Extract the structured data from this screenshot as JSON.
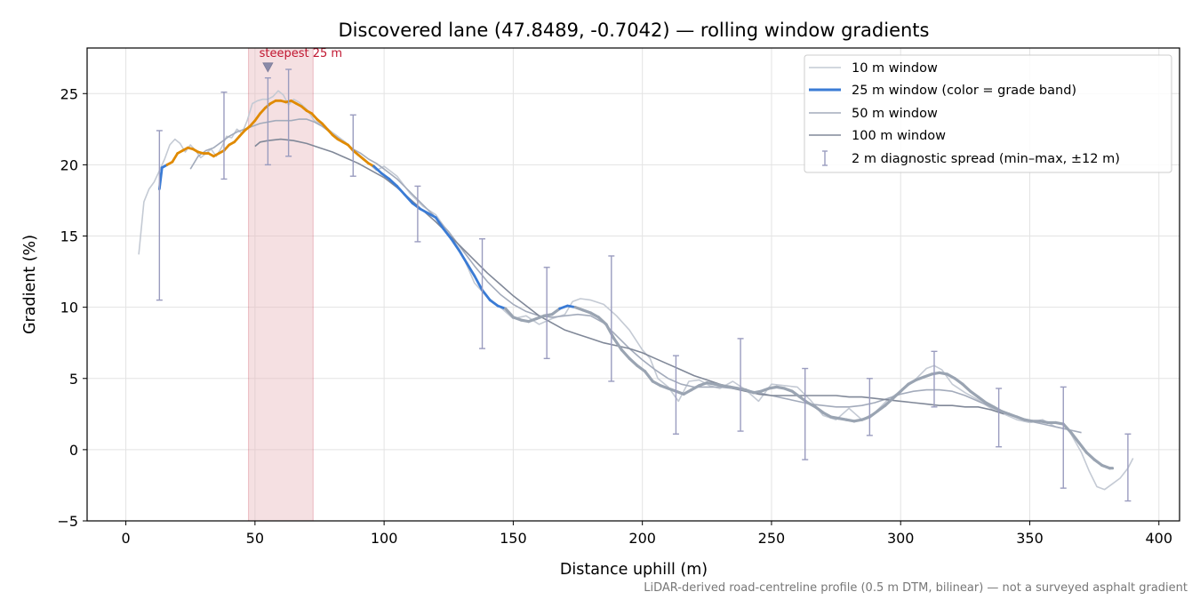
{
  "chart_data": {
    "type": "line",
    "title": "Discovered lane (47.8489, -0.7042) — rolling window gradients",
    "xlabel": "Distance uphill (m)",
    "ylabel": "Gradient (%)",
    "xlim": [
      -15,
      408
    ],
    "ylim": [
      -5,
      28.2
    ],
    "x_ticks": [
      0,
      50,
      100,
      150,
      200,
      250,
      300,
      350,
      400
    ],
    "y_ticks": [
      -5,
      0,
      5,
      10,
      15,
      20,
      25
    ],
    "grid": true,
    "legend_position": "top-right",
    "footnote": "LiDAR-derived road-centreline profile (0.5 m DTM, bilinear) — not a surveyed asphalt gradient",
    "annotation": {
      "label": "steepest 25 m",
      "x_start": 47.5,
      "x_end": 72.5,
      "marker_x": 55,
      "marker_y": 26.9,
      "color": "#c0152f",
      "band_color": "#e8b4bb"
    },
    "grade_band_colors": {
      "under_10": "#9aa4b2",
      "10_to_20": "#3a7bd5",
      "over_20": "#e08a00"
    },
    "series": [
      {
        "name": "10 m window",
        "color": "#c4cad4",
        "x": [
          5,
          7,
          9,
          11,
          13,
          15,
          17,
          19,
          21,
          23,
          25,
          27,
          29,
          31,
          33,
          35,
          37,
          39,
          41,
          43,
          45,
          47,
          49,
          51,
          53,
          55,
          57,
          59,
          61,
          63,
          65,
          67,
          70,
          73,
          76,
          79,
          82,
          85,
          88,
          91,
          94,
          97,
          100,
          105,
          110,
          115,
          120,
          125,
          130,
          135,
          140,
          145,
          150,
          155,
          160,
          165,
          170,
          173,
          176,
          180,
          185,
          190,
          195,
          200,
          203,
          206,
          210,
          214,
          218,
          222,
          226,
          230,
          235,
          240,
          245,
          250,
          255,
          260,
          265,
          270,
          275,
          280,
          285,
          290,
          295,
          300,
          305,
          310,
          313,
          316,
          320,
          325,
          330,
          335,
          340,
          345,
          350,
          355,
          360,
          365,
          370,
          373,
          376,
          379,
          382,
          385,
          388,
          390
        ],
        "y": [
          13.7,
          17.4,
          18.3,
          18.8,
          19.6,
          20.4,
          21.4,
          21.8,
          21.5,
          20.9,
          21.4,
          21.0,
          20.5,
          20.8,
          21.1,
          20.6,
          21.2,
          22.0,
          21.9,
          22.5,
          22.2,
          23.1,
          24.3,
          24.5,
          24.6,
          24.6,
          24.8,
          25.2,
          24.9,
          24.2,
          24.6,
          24.4,
          23.9,
          23.1,
          22.8,
          22.4,
          22.0,
          21.6,
          21.1,
          20.5,
          20.1,
          19.6,
          19.9,
          19.2,
          18.0,
          17.1,
          16.5,
          15.2,
          13.8,
          11.7,
          10.7,
          10.0,
          9.2,
          9.4,
          8.8,
          9.2,
          9.5,
          10.4,
          10.6,
          10.5,
          10.2,
          9.4,
          8.4,
          7.0,
          6.4,
          5.0,
          4.4,
          3.4,
          4.8,
          4.9,
          4.5,
          4.3,
          4.8,
          4.2,
          3.4,
          4.6,
          4.5,
          4.4,
          3.5,
          2.4,
          2.1,
          2.9,
          2.1,
          2.6,
          3.5,
          4.1,
          4.8,
          5.7,
          5.9,
          5.6,
          4.6,
          4.0,
          3.5,
          2.9,
          2.5,
          2.1,
          1.9,
          2.1,
          1.6,
          1.4,
          -0.2,
          -1.5,
          -2.6,
          -2.8,
          -2.4,
          -2.0,
          -1.3,
          -0.6
        ]
      },
      {
        "name": "25 m window (color = grade band)",
        "color": "#3a7bd5",
        "x": [
          13,
          14,
          16,
          18,
          20,
          22,
          24,
          26,
          28,
          30,
          32,
          34,
          36,
          38,
          40,
          42,
          44,
          46,
          48,
          50,
          52,
          54,
          56,
          58,
          60,
          62,
          64,
          66,
          68,
          70,
          72,
          74,
          76,
          78,
          80,
          82,
          84,
          86,
          88,
          90,
          92,
          94,
          96,
          99,
          102,
          105,
          108,
          111,
          114,
          117,
          120,
          123,
          126,
          129,
          132,
          135,
          138,
          141,
          144,
          147,
          150,
          153,
          156,
          159,
          162,
          165,
          168,
          171,
          174,
          177,
          180,
          183,
          186,
          189,
          192,
          195,
          198,
          201,
          204,
          207,
          210,
          213,
          216,
          219,
          222,
          225,
          228,
          231,
          234,
          237,
          240,
          243,
          246,
          249,
          252,
          255,
          258,
          261,
          264,
          267,
          270,
          273,
          276,
          279,
          282,
          285,
          288,
          291,
          294,
          297,
          300,
          303,
          306,
          309,
          312,
          315,
          318,
          321,
          324,
          327,
          330,
          333,
          336,
          339,
          342,
          345,
          348,
          351,
          354,
          357,
          360,
          363,
          366,
          369,
          372,
          375,
          378,
          381,
          382
        ],
        "y": [
          18.3,
          19.8,
          20.0,
          20.2,
          20.8,
          21.0,
          21.2,
          21.1,
          20.9,
          20.8,
          20.8,
          20.6,
          20.8,
          21.0,
          21.4,
          21.6,
          22.0,
          22.4,
          22.7,
          23.1,
          23.6,
          24.0,
          24.3,
          24.5,
          24.5,
          24.4,
          24.5,
          24.3,
          24.1,
          23.8,
          23.6,
          23.2,
          22.9,
          22.5,
          22.1,
          21.8,
          21.6,
          21.4,
          21.0,
          20.7,
          20.4,
          20.1,
          19.9,
          19.4,
          19.0,
          18.5,
          17.9,
          17.3,
          16.9,
          16.6,
          16.3,
          15.5,
          14.8,
          14.0,
          13.1,
          12.2,
          11.2,
          10.5,
          10.1,
          9.9,
          9.3,
          9.1,
          9.0,
          9.2,
          9.4,
          9.5,
          9.9,
          10.1,
          10.0,
          9.8,
          9.6,
          9.3,
          8.8,
          7.8,
          7.0,
          6.4,
          5.9,
          5.5,
          4.8,
          4.5,
          4.3,
          4.1,
          3.9,
          4.2,
          4.5,
          4.7,
          4.6,
          4.5,
          4.4,
          4.3,
          4.2,
          4.0,
          4.1,
          4.3,
          4.4,
          4.3,
          4.1,
          3.7,
          3.3,
          3.0,
          2.6,
          2.3,
          2.2,
          2.1,
          2.0,
          2.1,
          2.3,
          2.7,
          3.1,
          3.6,
          4.1,
          4.6,
          4.9,
          5.1,
          5.3,
          5.4,
          5.3,
          5.0,
          4.6,
          4.1,
          3.7,
          3.3,
          3.0,
          2.7,
          2.5,
          2.3,
          2.1,
          2.0,
          2.0,
          1.9,
          1.9,
          1.8,
          1.2,
          0.5,
          -0.2,
          -0.7,
          -1.1,
          -1.3,
          -1.3
        ]
      },
      {
        "name": "50 m window",
        "color": "#a3abbb",
        "x": [
          25,
          28,
          31,
          34,
          37,
          40,
          43,
          46,
          49,
          52,
          55,
          58,
          61,
          64,
          67,
          70,
          73,
          76,
          79,
          82,
          85,
          88,
          91,
          94,
          97,
          100,
          105,
          110,
          115,
          120,
          125,
          130,
          135,
          140,
          145,
          150,
          155,
          160,
          165,
          170,
          175,
          180,
          185,
          190,
          195,
          200,
          205,
          210,
          215,
          220,
          225,
          230,
          235,
          240,
          245,
          250,
          255,
          260,
          265,
          270,
          275,
          280,
          285,
          290,
          295,
          300,
          305,
          310,
          315,
          320,
          325,
          330,
          335,
          340,
          345,
          350,
          355,
          360,
          365,
          370
        ],
        "y": [
          19.7,
          20.6,
          21.0,
          21.2,
          21.6,
          22.0,
          22.3,
          22.5,
          22.7,
          22.9,
          23.0,
          23.1,
          23.1,
          23.1,
          23.2,
          23.2,
          23.0,
          22.7,
          22.3,
          21.9,
          21.5,
          21.1,
          20.8,
          20.4,
          20.1,
          19.7,
          19.0,
          18.1,
          17.2,
          16.3,
          15.3,
          14.1,
          12.9,
          11.8,
          10.9,
          10.2,
          9.7,
          9.4,
          9.3,
          9.4,
          9.5,
          9.4,
          8.9,
          8.0,
          7.1,
          6.3,
          5.6,
          5.0,
          4.6,
          4.4,
          4.4,
          4.4,
          4.3,
          4.2,
          4.0,
          3.8,
          3.6,
          3.4,
          3.2,
          3.1,
          3.0,
          3.0,
          3.1,
          3.3,
          3.6,
          3.9,
          4.1,
          4.2,
          4.2,
          4.1,
          3.8,
          3.4,
          3.0,
          2.6,
          2.3,
          2.0,
          1.8,
          1.6,
          1.4,
          1.2
        ]
      },
      {
        "name": "100 m window",
        "color": "#808898",
        "x": [
          50,
          52,
          55,
          60,
          65,
          70,
          75,
          80,
          85,
          90,
          95,
          100,
          105,
          110,
          115,
          120,
          125,
          130,
          135,
          140,
          145,
          150,
          155,
          160,
          165,
          170,
          175,
          180,
          185,
          190,
          195,
          200,
          205,
          210,
          215,
          220,
          225,
          230,
          235,
          240,
          245,
          250,
          255,
          260,
          265,
          270,
          275,
          280,
          285,
          290,
          295,
          300,
          305,
          310,
          315,
          320,
          325,
          330,
          335,
          340
        ],
        "y": [
          21.3,
          21.6,
          21.7,
          21.8,
          21.7,
          21.5,
          21.2,
          20.9,
          20.5,
          20.1,
          19.6,
          19.1,
          18.4,
          17.6,
          16.8,
          16.0,
          15.1,
          14.2,
          13.3,
          12.4,
          11.6,
          10.8,
          10.1,
          9.4,
          8.9,
          8.4,
          8.1,
          7.8,
          7.5,
          7.3,
          7.1,
          6.8,
          6.4,
          6.0,
          5.6,
          5.2,
          4.9,
          4.6,
          4.3,
          4.1,
          3.9,
          3.8,
          3.8,
          3.8,
          3.8,
          3.8,
          3.8,
          3.7,
          3.7,
          3.6,
          3.5,
          3.4,
          3.3,
          3.2,
          3.1,
          3.1,
          3.0,
          3.0,
          2.8,
          2.5
        ]
      }
    ],
    "diagnostic_spread": {
      "name": "2 m diagnostic spread (min–max, ±12 m)",
      "color": "#9a9cbf",
      "points": [
        {
          "x": 13,
          "min": 10.5,
          "max": 22.4
        },
        {
          "x": 38,
          "min": 19.0,
          "max": 25.1
        },
        {
          "x": 55,
          "min": 20.0,
          "max": 26.1
        },
        {
          "x": 63,
          "min": 20.6,
          "max": 26.7
        },
        {
          "x": 88,
          "min": 19.2,
          "max": 23.5
        },
        {
          "x": 113,
          "min": 14.6,
          "max": 18.5
        },
        {
          "x": 138,
          "min": 7.1,
          "max": 14.8
        },
        {
          "x": 163,
          "min": 6.4,
          "max": 12.8
        },
        {
          "x": 188,
          "min": 4.8,
          "max": 13.6
        },
        {
          "x": 213,
          "min": 1.1,
          "max": 6.6
        },
        {
          "x": 238,
          "min": 1.3,
          "max": 7.8
        },
        {
          "x": 263,
          "min": -0.7,
          "max": 5.7
        },
        {
          "x": 288,
          "min": 1.0,
          "max": 5.0
        },
        {
          "x": 313,
          "min": 3.0,
          "max": 6.9
        },
        {
          "x": 338,
          "min": 0.2,
          "max": 4.3
        },
        {
          "x": 363,
          "min": -2.7,
          "max": 4.4
        },
        {
          "x": 388,
          "min": -3.6,
          "max": 1.1
        }
      ]
    }
  }
}
